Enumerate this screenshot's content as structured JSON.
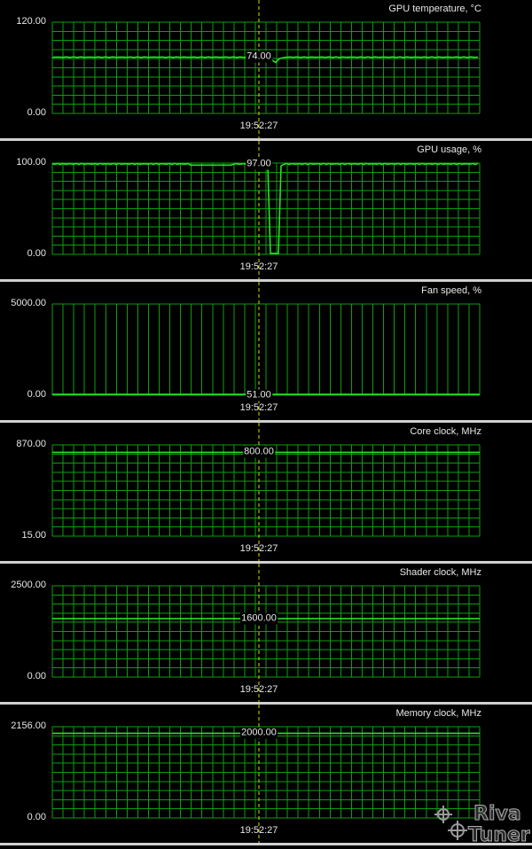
{
  "window": {
    "name": "hardware-monitor"
  },
  "colors": {
    "grid": "#0b9f0b",
    "line": "#28e028",
    "cursor": "#d8d800",
    "background": "#000000",
    "separator": "#d0d0d0",
    "text": "#e8e8e8"
  },
  "panels": [
    {
      "title": "GPU temperature, °C",
      "ymax_label": "120.00",
      "ymin_label": "0.00",
      "ymax": 120,
      "ymin": 0,
      "cursor_value": "74.00",
      "time_label": "19:52:27",
      "series": "temp",
      "baseline": 74
    },
    {
      "title": "GPU usage, %",
      "ymax_label": "100.00",
      "ymin_label": "0.00",
      "ymax": 100,
      "ymin": 0,
      "cursor_value": "97.00",
      "time_label": "19:52:27",
      "series": "usage",
      "baseline": 99
    },
    {
      "title": "Fan speed, %",
      "ymax_label": "5000.00",
      "ymin_label": "0.00",
      "ymax": 5000,
      "ymin": 0,
      "cursor_value": "51.00",
      "time_label": "19:52:27",
      "series": "flat",
      "baseline": 51
    },
    {
      "title": "Core clock, MHz",
      "ymax_label": "870.00",
      "ymin_label": "15.00",
      "ymax": 870,
      "ymin": 15,
      "cursor_value": "800.00",
      "time_label": "19:52:27",
      "series": "flat",
      "baseline": 800
    },
    {
      "title": "Shader clock, MHz",
      "ymax_label": "2500.00",
      "ymin_label": "0.00",
      "ymax": 2500,
      "ymin": 0,
      "cursor_value": "1600.00",
      "time_label": "19:52:27",
      "series": "flat",
      "baseline": 1600
    },
    {
      "title": "Memory clock, MHz",
      "ymax_label": "2156.00",
      "ymin_label": "0.00",
      "ymax": 2156,
      "ymin": 0,
      "cursor_value": "2000.00",
      "time_label": "19:52:27",
      "series": "flat",
      "baseline": 2000
    }
  ],
  "logo": {
    "text": "RivaTuner"
  }
}
